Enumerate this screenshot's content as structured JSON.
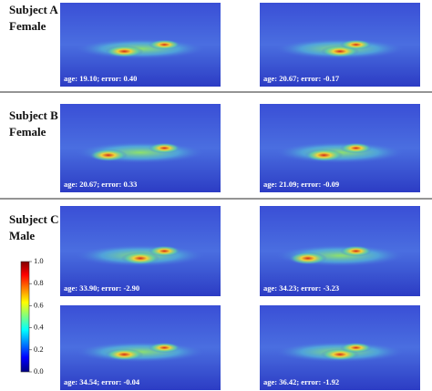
{
  "subjects": [
    {
      "name": "Subject A",
      "sex": "Female",
      "images": [
        {
          "caption": "age: 19.10; error: 0.40"
        },
        {
          "caption": "age: 20.67; error: -0.17"
        }
      ]
    },
    {
      "name": "Subject B",
      "sex": "Female",
      "images": [
        {
          "caption": "age: 20.67; error: 0.33"
        },
        {
          "caption": "age: 21.09; error: -0.09"
        }
      ]
    },
    {
      "name": "Subject C",
      "sex": "Male",
      "images": [
        {
          "caption": "age: 33.90; error: -2.90"
        },
        {
          "caption": "age: 34.23; error: -3.23"
        },
        {
          "caption": "age: 34.54; error: -0.04"
        },
        {
          "caption": "age: 36.42; error: -1.92"
        }
      ]
    }
  ],
  "colorbar": {
    "ticks": [
      "1.0",
      "0.8",
      "0.6",
      "0.4",
      "0.2",
      "0.0"
    ]
  }
}
